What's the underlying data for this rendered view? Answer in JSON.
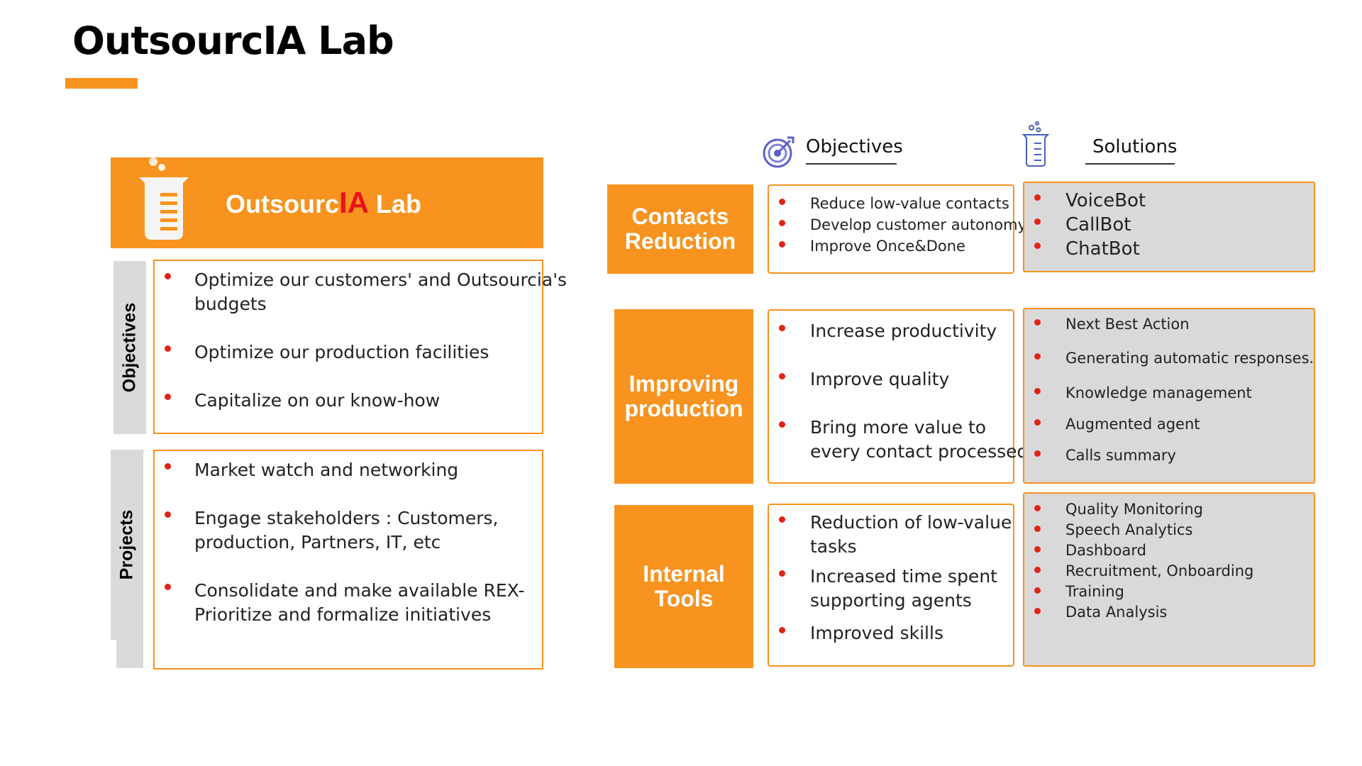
{
  "title": "OutsourcIA Lab",
  "colors": {
    "accent": "#F7931E",
    "bullet": "#E2231A",
    "tab_gray": "#DADADA",
    "solution_bg": "#D9D9D9",
    "ia_red": "#E8131B"
  },
  "banner": {
    "prefix": "Outsourc",
    "highlight": "IA",
    "suffix": " Lab",
    "icon": "beaker-icon"
  },
  "left": {
    "objectives": {
      "label": "Objectives",
      "items": [
        "Optimize our customers' and Outsourcia's",
        "budgets",
        "Optimize our production facilities",
        "Capitalize on our know-how"
      ]
    },
    "projects": {
      "label": "Projects",
      "items": [
        "Market watch and networking",
        "Engage stakeholders : Customers,",
        "production, Partners, IT, etc",
        "Consolidate and make available REX-",
        "Prioritize and formalize initiatives"
      ]
    }
  },
  "headers": {
    "objectives": {
      "label": "Objectives",
      "icon": "target-icon"
    },
    "solutions": {
      "label": "Solutions",
      "icon": "beaker-icon"
    }
  },
  "rows": [
    {
      "category": [
        "Contacts",
        "Reduction"
      ],
      "objectives": [
        "Reduce low-value contacts",
        "Develop customer autonomy",
        "Improve Once&Done"
      ],
      "solutions": [
        "VoiceBot",
        "CallBot",
        "ChatBot"
      ]
    },
    {
      "category": [
        "Improving",
        "production"
      ],
      "objectives": [
        "Increase productivity",
        "Improve quality",
        "Bring more value to",
        "every contact processed"
      ],
      "solutions": [
        "Next Best Action",
        "Generating automatic responses.",
        "Knowledge management",
        "Augmented agent",
        "Calls summary"
      ]
    },
    {
      "category": [
        "Internal",
        "Tools"
      ],
      "objectives": [
        "Reduction of low-value",
        "tasks",
        "Increased time spent",
        "supporting agents",
        "Improved skills"
      ],
      "solutions": [
        "Quality Monitoring",
        "Speech Analytics",
        "Dashboard",
        "Recruitment, Onboarding",
        "Training",
        "Data Analysis"
      ]
    }
  ]
}
